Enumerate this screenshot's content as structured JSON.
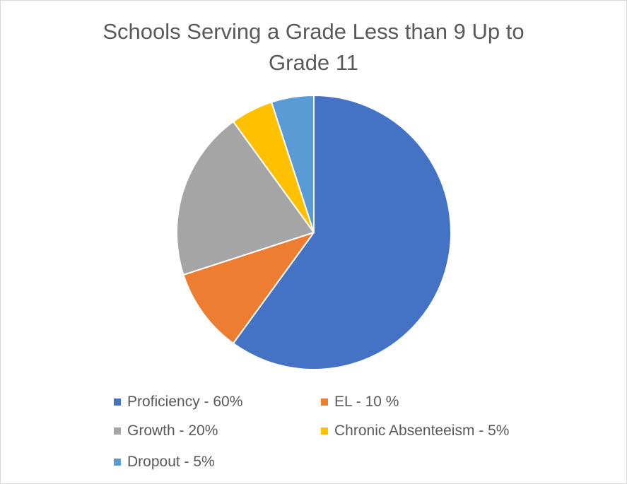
{
  "chart_data": {
    "type": "pie",
    "title_lines": [
      "Schools Serving a Grade Less than 9 Up to",
      "Grade 11"
    ],
    "legend_placement": "bottom",
    "slices": [
      {
        "label": "Proficiency - 60%",
        "value": 60,
        "color": "#4472C4"
      },
      {
        "label": "EL - 10 %",
        "value": 10,
        "color": "#ED7D31"
      },
      {
        "label": "Growth - 20%",
        "value": 20,
        "color": "#A5A5A5"
      },
      {
        "label": "Chronic Absenteeism - 5%",
        "value": 5,
        "color": "#FFC000"
      },
      {
        "label": "Dropout - 5%",
        "value": 5,
        "color": "#5B9BD5"
      }
    ]
  }
}
